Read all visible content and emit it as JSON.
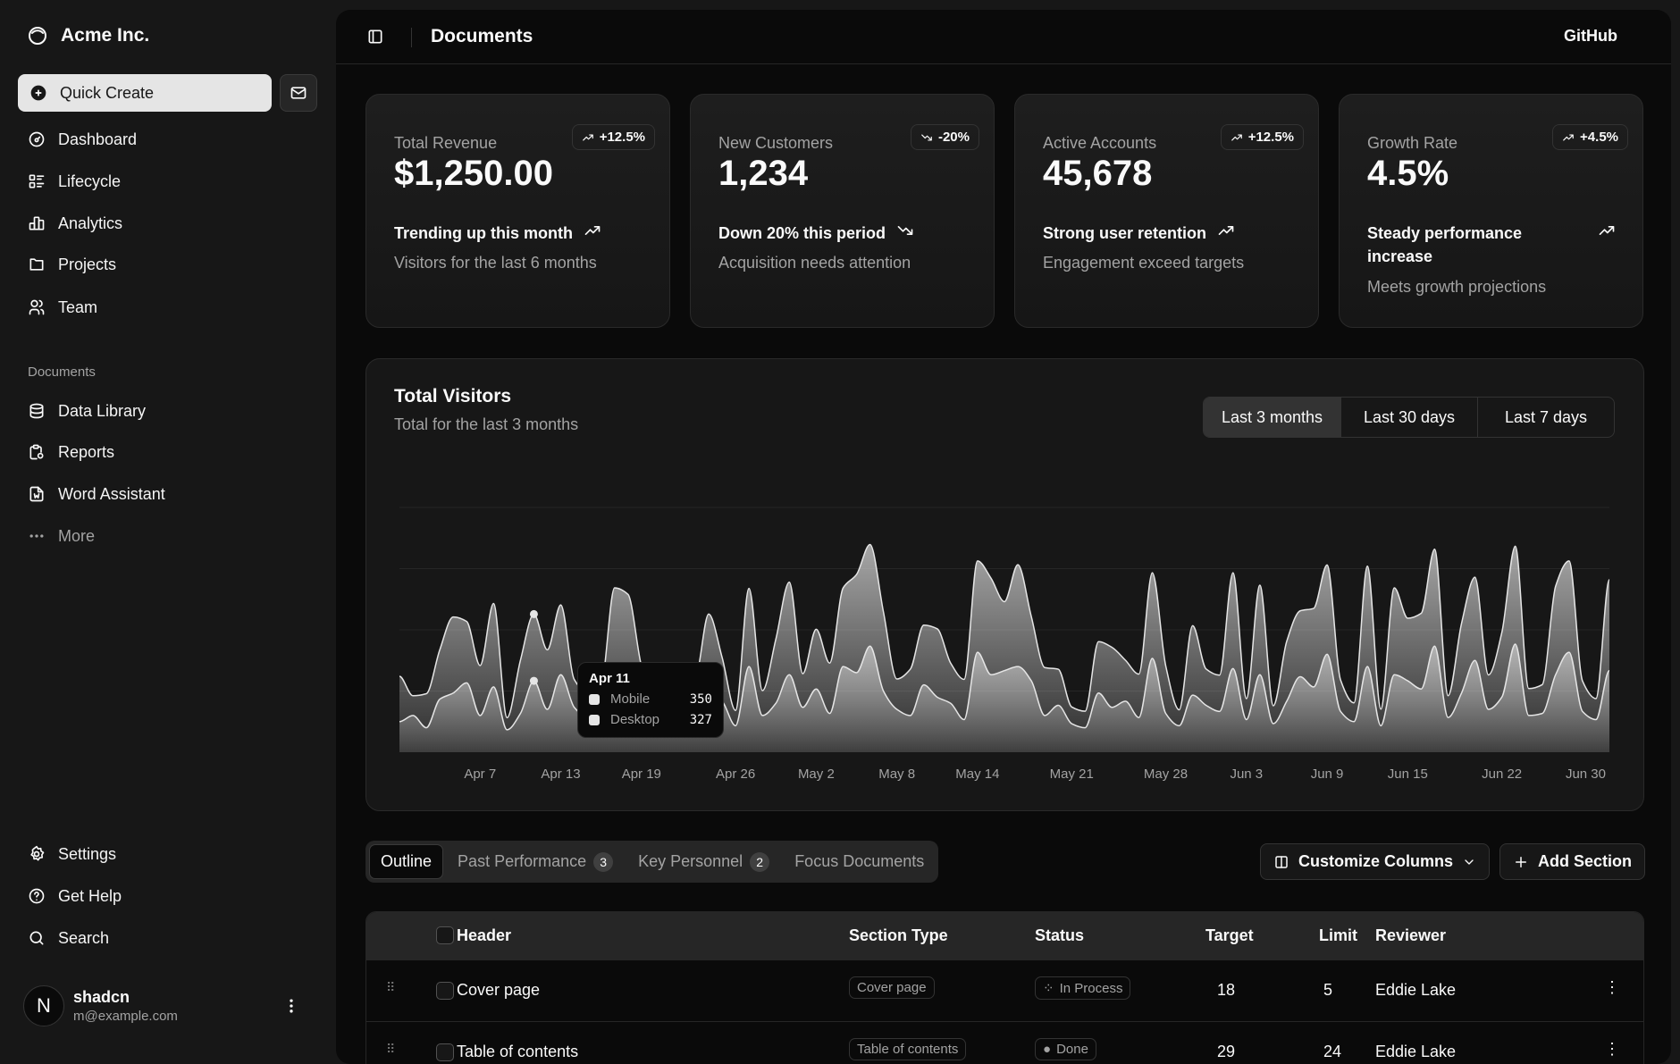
{
  "sidebar": {
    "brand": "Acme Inc.",
    "quick_create": "Quick Create",
    "nav": [
      {
        "label": "Dashboard",
        "icon": "gauge-icon"
      },
      {
        "label": "Lifecycle",
        "icon": "list-details-icon"
      },
      {
        "label": "Analytics",
        "icon": "bar-chart-icon"
      },
      {
        "label": "Projects",
        "icon": "folder-icon"
      },
      {
        "label": "Team",
        "icon": "users-icon"
      }
    ],
    "documents_label": "Documents",
    "documents": [
      {
        "label": "Data Library",
        "icon": "database-icon"
      },
      {
        "label": "Reports",
        "icon": "report-icon"
      },
      {
        "label": "Word Assistant",
        "icon": "file-word-icon"
      },
      {
        "label": "More",
        "icon": "dots-icon"
      }
    ],
    "secondary": [
      {
        "label": "Settings",
        "icon": "gear-icon"
      },
      {
        "label": "Get Help",
        "icon": "help-icon"
      },
      {
        "label": "Search",
        "icon": "search-icon"
      }
    ],
    "user": {
      "initial": "N",
      "name": "shadcn",
      "email": "m@example.com"
    }
  },
  "header": {
    "title": "Documents",
    "github": "GitHub"
  },
  "cards": [
    {
      "label": "Total Revenue",
      "value": "$1,250.00",
      "badge": "+12.5%",
      "trend": "up",
      "footer": "Trending up this month",
      "desc": "Visitors for the last 6 months"
    },
    {
      "label": "New Customers",
      "value": "1,234",
      "badge": "-20%",
      "trend": "down",
      "footer": "Down 20% this period",
      "desc": "Acquisition needs attention"
    },
    {
      "label": "Active Accounts",
      "value": "45,678",
      "badge": "+12.5%",
      "trend": "up",
      "footer": "Strong user retention",
      "desc": "Engagement exceed targets"
    },
    {
      "label": "Growth Rate",
      "value": "4.5%",
      "badge": "+4.5%",
      "trend": "up",
      "footer": "Steady performance increase",
      "desc": "Meets growth projections"
    }
  ],
  "visitors": {
    "title": "Total Visitors",
    "subtitle": "Total for the last 3 months",
    "ranges": [
      "Last 3 months",
      "Last 30 days",
      "Last 7 days"
    ],
    "selected_range": "Last 3 months",
    "tooltip": {
      "date": "Apr 11",
      "items": [
        {
          "name": "Mobile",
          "value": "350"
        },
        {
          "name": "Desktop",
          "value": "327"
        }
      ]
    }
  },
  "chart_data": {
    "type": "area",
    "stacked": true,
    "grid": true,
    "ylim": [
      0,
      1200
    ],
    "series_order": [
      "mobile",
      "desktop"
    ],
    "series": [
      {
        "name": "Mobile",
        "key": "mobile"
      },
      {
        "name": "Desktop",
        "key": "desktop"
      }
    ],
    "x_ticks": [
      "Apr 7",
      "Apr 13",
      "Apr 19",
      "Apr 26",
      "May 2",
      "May 8",
      "May 14",
      "May 21",
      "May 28",
      "Jun 3",
      "Jun 9",
      "Jun 15",
      "Jun 22",
      "Jun 30"
    ],
    "points": [
      [
        "Apr 1",
        150,
        222
      ],
      [
        "Apr 2",
        180,
        97
      ],
      [
        "Apr 3",
        120,
        167
      ],
      [
        "Apr 4",
        260,
        242
      ],
      [
        "Apr 5",
        290,
        373
      ],
      [
        "Apr 6",
        340,
        301
      ],
      [
        "Apr 7",
        180,
        245
      ],
      [
        "Apr 8",
        320,
        409
      ],
      [
        "Apr 9",
        110,
        59
      ],
      [
        "Apr 10",
        190,
        261
      ],
      [
        "Apr 11",
        350,
        327
      ],
      [
        "Apr 12",
        210,
        292
      ],
      [
        "Apr 13",
        380,
        342
      ],
      [
        "Apr 14",
        220,
        137
      ],
      [
        "Apr 15",
        170,
        120
      ],
      [
        "Apr 16",
        190,
        138
      ],
      [
        "Apr 17",
        360,
        446
      ],
      [
        "Apr 18",
        410,
        364
      ],
      [
        "Apr 19",
        180,
        243
      ],
      [
        "Apr 20",
        150,
        89
      ],
      [
        "Apr 21",
        200,
        137
      ],
      [
        "Apr 22",
        170,
        224
      ],
      [
        "Apr 23",
        230,
        138
      ],
      [
        "Apr 24",
        290,
        387
      ],
      [
        "Apr 25",
        250,
        215
      ],
      [
        "Apr 26",
        130,
        75
      ],
      [
        "Apr 27",
        420,
        383
      ],
      [
        "Apr 28",
        180,
        122
      ],
      [
        "Apr 29",
        240,
        315
      ],
      [
        "Apr 30",
        380,
        454
      ],
      [
        "May 1",
        220,
        165
      ],
      [
        "May 2",
        310,
        293
      ],
      [
        "May 3",
        190,
        247
      ],
      [
        "May 4",
        420,
        385
      ],
      [
        "May 5",
        390,
        481
      ],
      [
        "May 6",
        520,
        498
      ],
      [
        "May 7",
        300,
        388
      ],
      [
        "May 8",
        210,
        149
      ],
      [
        "May 9",
        180,
        227
      ],
      [
        "May 10",
        330,
        293
      ],
      [
        "May 11",
        270,
        335
      ],
      [
        "May 12",
        240,
        197
      ],
      [
        "May 13",
        160,
        197
      ],
      [
        "May 14",
        490,
        448
      ],
      [
        "May 15",
        380,
        473
      ],
      [
        "May 16",
        400,
        338
      ],
      [
        "May 17",
        420,
        499
      ],
      [
        "May 18",
        350,
        315
      ],
      [
        "May 19",
        180,
        235
      ],
      [
        "May 20",
        230,
        177
      ],
      [
        "May 21",
        140,
        82
      ],
      [
        "May 22",
        120,
        81
      ],
      [
        "May 23",
        290,
        252
      ],
      [
        "May 24",
        220,
        294
      ],
      [
        "May 25",
        250,
        201
      ],
      [
        "May 26",
        170,
        213
      ],
      [
        "May 27",
        460,
        420
      ],
      [
        "May 28",
        190,
        233
      ],
      [
        "May 29",
        130,
        78
      ],
      [
        "May 30",
        280,
        340
      ],
      [
        "May 31",
        230,
        178
      ],
      [
        "Jun 1",
        200,
        178
      ],
      [
        "Jun 2",
        410,
        470
      ],
      [
        "Jun 3",
        160,
        103
      ],
      [
        "Jun 4",
        380,
        439
      ],
      [
        "Jun 5",
        140,
        88
      ],
      [
        "Jun 6",
        250,
        294
      ],
      [
        "Jun 7",
        370,
        323
      ],
      [
        "Jun 8",
        320,
        385
      ],
      [
        "Jun 9",
        480,
        438
      ],
      [
        "Jun 10",
        200,
        155
      ],
      [
        "Jun 11",
        150,
        92
      ],
      [
        "Jun 12",
        420,
        492
      ],
      [
        "Jun 13",
        130,
        81
      ],
      [
        "Jun 14",
        380,
        426
      ],
      [
        "Jun 15",
        350,
        307
      ],
      [
        "Jun 16",
        310,
        371
      ],
      [
        "Jun 17",
        520,
        475
      ],
      [
        "Jun 18",
        170,
        107
      ],
      [
        "Jun 19",
        290,
        341
      ],
      [
        "Jun 20",
        450,
        408
      ],
      [
        "Jun 21",
        210,
        169
      ],
      [
        "Jun 22",
        270,
        317
      ],
      [
        "Jun 23",
        530,
        480
      ],
      [
        "Jun 24",
        180,
        132
      ],
      [
        "Jun 25",
        190,
        141
      ],
      [
        "Jun 26",
        380,
        434
      ],
      [
        "Jun 27",
        490,
        448
      ],
      [
        "Jun 28",
        200,
        149
      ],
      [
        "Jun 29",
        160,
        103
      ],
      [
        "Jun 30",
        400,
        446
      ]
    ],
    "active_point": "Apr 11"
  },
  "tabs": {
    "items": [
      {
        "label": "Outline"
      },
      {
        "label": "Past Performance",
        "count": "3"
      },
      {
        "label": "Key Personnel",
        "count": "2"
      },
      {
        "label": "Focus Documents"
      }
    ],
    "selected": "Outline",
    "customize": "Customize Columns",
    "add_section": "Add Section"
  },
  "table": {
    "columns": [
      "Header",
      "Section Type",
      "Status",
      "Target",
      "Limit",
      "Reviewer"
    ],
    "rows": [
      {
        "header": "Cover page",
        "type": "Cover page",
        "status": "In Process",
        "target": "18",
        "limit": "5",
        "reviewer": "Eddie Lake"
      },
      {
        "header": "Table of contents",
        "type": "Table of contents",
        "status": "Done",
        "target": "29",
        "limit": "24",
        "reviewer": "Eddie Lake"
      }
    ]
  },
  "colors": {
    "background": "#171717",
    "inset": "#0a0a0a",
    "card": "#1c1c1c",
    "border": "#2a2a2a",
    "text": "#fafafa",
    "muted": "#a3a3a3",
    "chart_line": "#e5e5e5"
  }
}
